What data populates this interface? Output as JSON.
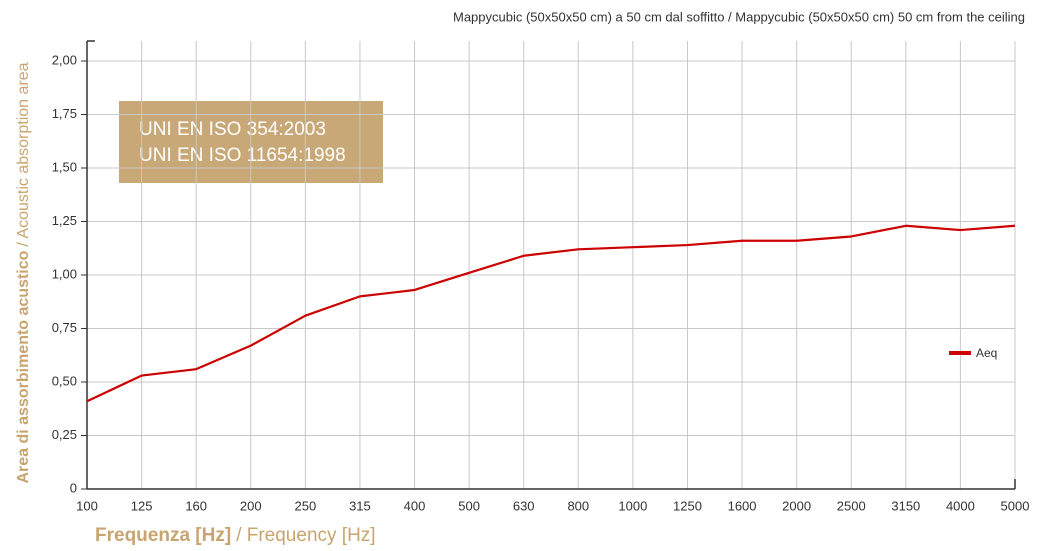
{
  "chart_data": {
    "type": "line",
    "title": "Mappycubic (50x50x50 cm) a 50 cm dal soffitto / Mappycubic (50x50x50 cm) 50 cm from the ceiling",
    "xlabel": [
      "Frequenza [Hz]",
      "/ Frequency [Hz]"
    ],
    "ylabel": [
      "Area di assorbimento acustico",
      "/ Acoustic absorption area"
    ],
    "annotations": [
      "UNI EN ISO 354:2003",
      "UNI EN ISO 11654:1998"
    ],
    "categories": [
      "100",
      "125",
      "160",
      "200",
      "250",
      "315",
      "400",
      "500",
      "630",
      "800",
      "1000",
      "1250",
      "1600",
      "2000",
      "2500",
      "3150",
      "4000",
      "5000"
    ],
    "series": [
      {
        "name": "Aeq",
        "color": "#cc0000",
        "values": [
          0.41,
          0.53,
          0.56,
          0.67,
          0.81,
          0.9,
          0.93,
          1.01,
          1.09,
          1.12,
          1.13,
          1.14,
          1.16,
          1.16,
          1.18,
          1.23,
          1.21,
          1.23
        ]
      }
    ],
    "ylim": [
      0,
      2
    ],
    "yticks": [
      0,
      {
        "value": 0.25,
        "label": "0,25"
      },
      {
        "value": 0.5,
        "label": "0,50"
      },
      {
        "value": 0.75,
        "label": "0,75"
      },
      {
        "value": 1,
        "label": "1,00"
      },
      {
        "value": 1.25,
        "label": "1,25"
      },
      {
        "value": 1.5,
        "label": "1,50"
      },
      {
        "value": 1.75,
        "label": "1,75"
      },
      {
        "value": 2,
        "label": "2,00"
      }
    ],
    "grid": true
  }
}
